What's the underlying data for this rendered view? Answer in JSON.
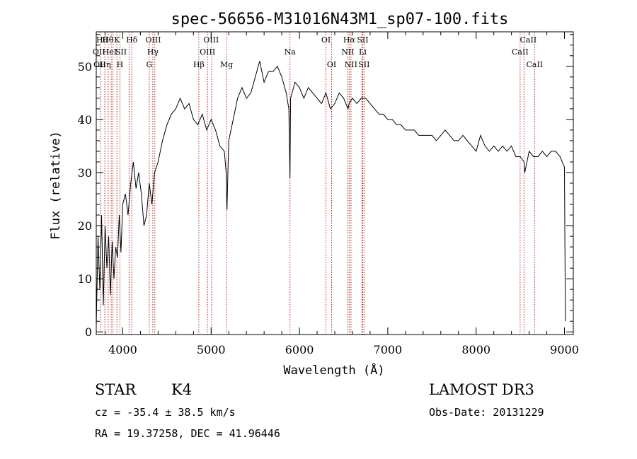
{
  "chart_data": {
    "type": "line",
    "title": "spec-56656-M31016N43M1_sp07-100.fits",
    "xlabel": "Wavelength (Å)",
    "ylabel": "Flux (relative)",
    "xlim": [
      3700,
      9100
    ],
    "ylim": [
      -0.5,
      56.5
    ],
    "x_ticks": [
      4000,
      5000,
      6000,
      7000,
      8000,
      9000
    ],
    "x_tick_labels": [
      "4000",
      "5000",
      "6000",
      "7000",
      "8000",
      "9000"
    ],
    "y_ticks": [
      0,
      10,
      20,
      30,
      40,
      50
    ],
    "y_tick_labels": [
      "0",
      "10",
      "20",
      "30",
      "40",
      "50"
    ],
    "line_color": "#000000",
    "marker_color": "#b22222",
    "series": [
      {
        "name": "flux",
        "x": [
          3700,
          3720,
          3740,
          3760,
          3780,
          3800,
          3820,
          3840,
          3860,
          3880,
          3900,
          3920,
          3940,
          3960,
          3980,
          4000,
          4030,
          4060,
          4090,
          4120,
          4150,
          4180,
          4210,
          4240,
          4270,
          4300,
          4330,
          4360,
          4400,
          4450,
          4500,
          4550,
          4600,
          4650,
          4700,
          4750,
          4800,
          4850,
          4900,
          4950,
          5000,
          5050,
          5100,
          5150,
          5170,
          5180,
          5190,
          5200,
          5250,
          5300,
          5350,
          5400,
          5450,
          5500,
          5550,
          5600,
          5650,
          5700,
          5750,
          5800,
          5850,
          5880,
          5893,
          5900,
          5950,
          6000,
          6050,
          6100,
          6150,
          6200,
          6250,
          6300,
          6350,
          6400,
          6450,
          6500,
          6550,
          6563,
          6600,
          6650,
          6700,
          6750,
          6800,
          6850,
          6900,
          6950,
          7000,
          7050,
          7100,
          7150,
          7200,
          7250,
          7300,
          7350,
          7400,
          7450,
          7500,
          7550,
          7600,
          7650,
          7700,
          7750,
          7800,
          7850,
          7900,
          7950,
          8000,
          8050,
          8100,
          8150,
          8200,
          8250,
          8300,
          8350,
          8400,
          8450,
          8500,
          8542,
          8550,
          8600,
          8650,
          8700,
          8750,
          8800,
          8850,
          8900,
          8950,
          9000,
          9010
        ],
        "y": [
          1,
          18,
          8,
          22,
          5,
          20,
          12,
          18,
          7,
          17,
          10,
          16,
          14,
          22,
          15,
          24,
          26,
          22,
          28,
          32,
          27,
          30,
          26,
          20,
          22,
          28,
          24,
          30,
          32,
          36,
          39,
          41,
          42,
          44,
          42,
          43,
          40,
          39,
          41,
          38,
          40,
          38,
          35,
          34,
          30,
          23,
          30,
          36,
          40,
          44,
          46,
          44,
          45,
          48,
          51,
          47,
          49,
          49,
          50,
          48,
          45,
          42,
          29,
          44,
          47,
          46,
          44,
          46,
          45,
          44,
          43,
          45,
          42,
          43,
          45,
          44,
          42,
          43,
          44,
          43,
          44,
          44,
          43,
          42,
          41,
          41,
          40,
          40,
          39,
          39,
          38,
          38,
          38,
          37,
          37,
          37,
          37,
          36,
          37,
          38,
          37,
          36,
          36,
          37,
          36,
          35,
          34,
          37,
          35,
          34,
          35,
          34,
          35,
          34,
          35,
          33,
          33,
          32,
          30,
          34,
          33,
          33,
          34,
          33,
          34,
          34,
          33,
          31,
          2
        ]
      }
    ],
    "lines": [
      {
        "x": 3750,
        "labels": [
          "Hθ",
          "OII"
        ]
      },
      {
        "x": 3797,
        "labels": [
          "Hθ"
        ]
      },
      {
        "x": 3835,
        "labels": [
          "Hη"
        ]
      },
      {
        "x": 3869,
        "labels": [
          "HeI"
        ]
      },
      {
        "x": 3889,
        "labels": [
          "Hζ"
        ]
      },
      {
        "x": 3934,
        "labels": [
          "K"
        ]
      },
      {
        "x": 3968,
        "labels": [
          "H"
        ]
      },
      {
        "x": 4072,
        "labels": [
          "SII"
        ]
      },
      {
        "x": 4102,
        "labels": [
          "Hδ"
        ]
      },
      {
        "x": 4300,
        "labels": [
          "G"
        ]
      },
      {
        "x": 4340,
        "labels": [
          "Hγ"
        ]
      },
      {
        "x": 4363,
        "labels": [
          "OIII"
        ]
      },
      {
        "x": 4861,
        "labels": [
          "Hβ"
        ]
      },
      {
        "x": 4959,
        "labels": [
          "OIII"
        ]
      },
      {
        "x": 5007,
        "labels": [
          "OIII"
        ]
      },
      {
        "x": 5175,
        "labels": [
          "Mg"
        ]
      },
      {
        "x": 5893,
        "labels": [
          "Na"
        ]
      },
      {
        "x": 6300,
        "labels": [
          "OI"
        ]
      },
      {
        "x": 6364,
        "labels": [
          "OI"
        ]
      },
      {
        "x": 6548,
        "labels": [
          "NII"
        ]
      },
      {
        "x": 6563,
        "labels": [
          "Hα"
        ]
      },
      {
        "x": 6583,
        "labels": [
          "NII"
        ]
      },
      {
        "x": 6707,
        "labels": [
          "Li"
        ]
      },
      {
        "x": 6716,
        "labels": [
          "SII"
        ]
      },
      {
        "x": 6731,
        "labels": [
          "SII"
        ]
      },
      {
        "x": 8498,
        "labels": [
          "CaII"
        ]
      },
      {
        "x": 8542,
        "labels": [
          "CaII"
        ]
      },
      {
        "x": 8662,
        "labels": [
          "CaII"
        ]
      }
    ],
    "line_labels": [
      {
        "text": "Hθ",
        "x": 3765,
        "row": 0
      },
      {
        "text": "OII",
        "x": 3730,
        "row": 1
      },
      {
        "text": "OII",
        "x": 3740,
        "row": 2
      },
      {
        "text": "Hη",
        "x": 3800,
        "row": 2
      },
      {
        "text": "HeI",
        "x": 3850,
        "row": 1
      },
      {
        "text": "Hθ",
        "x": 3830,
        "row": 0
      },
      {
        "text": "K",
        "x": 3934,
        "row": 0
      },
      {
        "text": "H",
        "x": 3968,
        "row": 2
      },
      {
        "text": "SII",
        "x": 3980,
        "row": 1
      },
      {
        "text": "Hδ",
        "x": 4102,
        "row": 0
      },
      {
        "text": "OIII",
        "x": 4345,
        "row": 0
      },
      {
        "text": "Hγ",
        "x": 4340,
        "row": 1
      },
      {
        "text": "G",
        "x": 4300,
        "row": 2
      },
      {
        "text": "OIII",
        "x": 5000,
        "row": 0
      },
      {
        "text": "OIII",
        "x": 4959,
        "row": 1
      },
      {
        "text": "Hβ",
        "x": 4861,
        "row": 2
      },
      {
        "text": "Mg",
        "x": 5175,
        "row": 2
      },
      {
        "text": "Na",
        "x": 5893,
        "row": 1
      },
      {
        "text": "OI",
        "x": 6300,
        "row": 0
      },
      {
        "text": "OI",
        "x": 6364,
        "row": 2
      },
      {
        "text": "Hα",
        "x": 6563,
        "row": 0
      },
      {
        "text": "SII",
        "x": 6716,
        "row": 0
      },
      {
        "text": "NII",
        "x": 6548,
        "row": 1
      },
      {
        "text": "Li",
        "x": 6716,
        "row": 1
      },
      {
        "text": "NII",
        "x": 6583,
        "row": 2
      },
      {
        "text": "SII",
        "x": 6731,
        "row": 2
      },
      {
        "text": "CaII",
        "x": 8590,
        "row": 0
      },
      {
        "text": "CaII",
        "x": 8498,
        "row": 1
      },
      {
        "text": "CaII",
        "x": 8662,
        "row": 2
      }
    ]
  },
  "info": {
    "object_type": "STAR",
    "subclass": "K4",
    "survey": "LAMOST DR3",
    "redshift": "cz = -35.4 ± 38.5 km/s",
    "obs_date": "Obs-Date: 20131229",
    "coords": "RA =  19.37258, DEC =  41.96446"
  }
}
